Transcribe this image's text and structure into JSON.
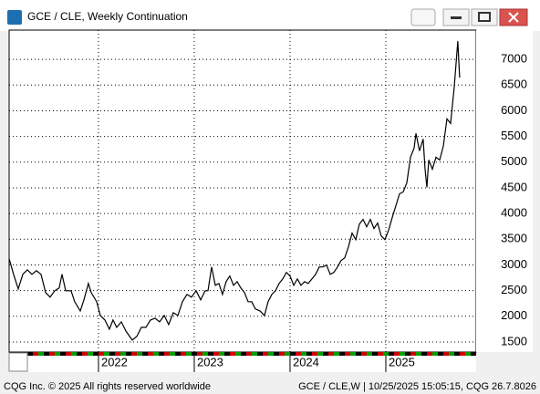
{
  "chart_data": {
    "type": "line",
    "title": "GCE / CLE, Weekly Continuation",
    "x": [
      2021.067,
      2021.114,
      2021.162,
      2021.21,
      2021.257,
      2021.305,
      2021.352,
      2021.4,
      2021.448,
      2021.495,
      2021.543,
      2021.59,
      2021.619,
      2021.657,
      2021.714,
      2021.752,
      2021.81,
      2021.848,
      2021.895,
      2021.924,
      2021.981,
      2022.019,
      2022.067,
      2022.114,
      2022.152,
      2022.19,
      2022.238,
      2022.286,
      2022.352,
      2022.4,
      2022.448,
      2022.495,
      2022.543,
      2022.59,
      2022.638,
      2022.686,
      2022.733,
      2022.781,
      2022.829,
      2022.876,
      2022.924,
      2022.971,
      2023.019,
      2023.067,
      2023.114,
      2023.143,
      2023.181,
      2023.219,
      2023.257,
      2023.295,
      2023.333,
      2023.371,
      2023.41,
      2023.448,
      2023.486,
      2023.524,
      2023.562,
      2023.6,
      2023.638,
      2023.686,
      2023.733,
      2023.771,
      2023.81,
      2023.848,
      2023.886,
      2023.924,
      2023.962,
      2024.0,
      2024.038,
      2024.076,
      2024.114,
      2024.152,
      2024.19,
      2024.229,
      2024.267,
      2024.305,
      2024.343,
      2024.381,
      2024.419,
      2024.457,
      2024.495,
      2024.533,
      2024.571,
      2024.61,
      2024.648,
      2024.686,
      2024.724,
      2024.762,
      2024.8,
      2024.838,
      2024.876,
      2024.914,
      2024.952,
      2024.99,
      2025.029,
      2025.067,
      2025.105,
      2025.143,
      2025.181,
      2025.219,
      2025.257,
      2025.295,
      2025.314,
      2025.352,
      2025.39,
      2025.41,
      2025.429,
      2025.448,
      2025.486,
      2025.524,
      2025.562,
      2025.6,
      2025.638,
      2025.676,
      2025.714,
      2025.752,
      2025.771
    ],
    "values": [
      3120,
      2817,
      2532,
      2817,
      2906,
      2817,
      2888,
      2817,
      2461,
      2372,
      2497,
      2550,
      2817,
      2497,
      2497,
      2283,
      2105,
      2319,
      2639,
      2461,
      2283,
      2016,
      1927,
      1750,
      1927,
      1785,
      1892,
      1714,
      1536,
      1607,
      1785,
      1785,
      1927,
      1963,
      1892,
      2016,
      1838,
      2069,
      2016,
      2283,
      2426,
      2372,
      2497,
      2319,
      2497,
      2497,
      2960,
      2604,
      2639,
      2426,
      2675,
      2782,
      2604,
      2675,
      2550,
      2461,
      2283,
      2283,
      2141,
      2105,
      2016,
      2283,
      2426,
      2497,
      2639,
      2728,
      2853,
      2782,
      2604,
      2728,
      2604,
      2675,
      2639,
      2728,
      2817,
      2960,
      2960,
      2995,
      2817,
      2853,
      2960,
      3084,
      3138,
      3351,
      3618,
      3493,
      3796,
      3885,
      3743,
      3885,
      3707,
      3814,
      3565,
      3493,
      3672,
      3920,
      4152,
      4384,
      4419,
      4597,
      5096,
      5274,
      5558,
      5220,
      5451,
      4864,
      4508,
      5042,
      4864,
      5096,
      5042,
      5309,
      5843,
      5754,
      6466,
      7356,
      6644
    ],
    "color": "#000000",
    "xlim": [
      2021.067,
      2025.943
    ],
    "ylim": [
      1304,
      7570
    ],
    "xticks": [
      2022,
      2023,
      2024,
      2025
    ],
    "yticks": [
      1500,
      2000,
      2500,
      3000,
      3500,
      4000,
      4500,
      5000,
      5500,
      6000,
      6500,
      7000
    ],
    "grid": true
  },
  "footer": {
    "left": "CQG Inc. © 2025 All rights reserved worldwide",
    "right": "GCE / CLE,W | 10/25/2025 15:05:15, CQG 26.7.8026"
  }
}
